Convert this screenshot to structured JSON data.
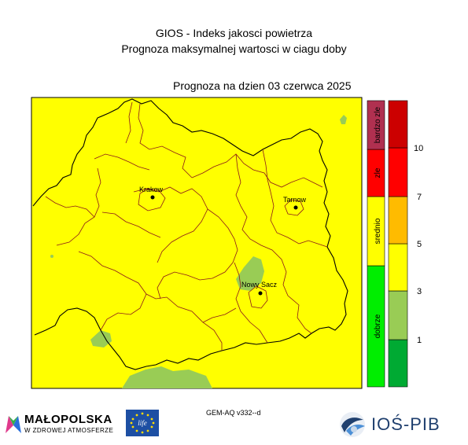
{
  "header": {
    "title": "GIOS - Indeks jakosci powietrza",
    "subtitle": "Prognoza maksymalnej wartosci w ciagu doby",
    "date_label": "Prognoza na dzien  03 czerwca 2025"
  },
  "map": {
    "cities": [
      {
        "name": "Krakow"
      },
      {
        "name": "Tarnow"
      },
      {
        "name": "Nowy Sacz"
      }
    ],
    "region_color": "#ffff00",
    "good_area_color": "#99cc55",
    "boundary_color": "#8b1a1a",
    "outline_color": "#000000"
  },
  "legend": {
    "categories": [
      {
        "label": "dobrze",
        "color": "#00ee00"
      },
      {
        "label": "srednio",
        "color": "#ffff00"
      },
      {
        "label": "zle",
        "color": "#ff0000"
      },
      {
        "label": "bardzo zle",
        "color": "#b03050"
      }
    ],
    "scale_colors": [
      "#00aa33",
      "#99cc55",
      "#ffff00",
      "#ffbb00",
      "#ff0000",
      "#cc0000"
    ],
    "scale_ticks": [
      "1",
      "3",
      "5",
      "7",
      "10"
    ]
  },
  "footer": {
    "model": "GEM-AQ v332--d",
    "logo_malopolska": "MAŁOPOLSKA",
    "logo_malopolska_sub": "W ZDROWEJ ATMOSFERZE",
    "logo_ios": "IOŚ-PIB",
    "eu_logo_text": "life"
  }
}
